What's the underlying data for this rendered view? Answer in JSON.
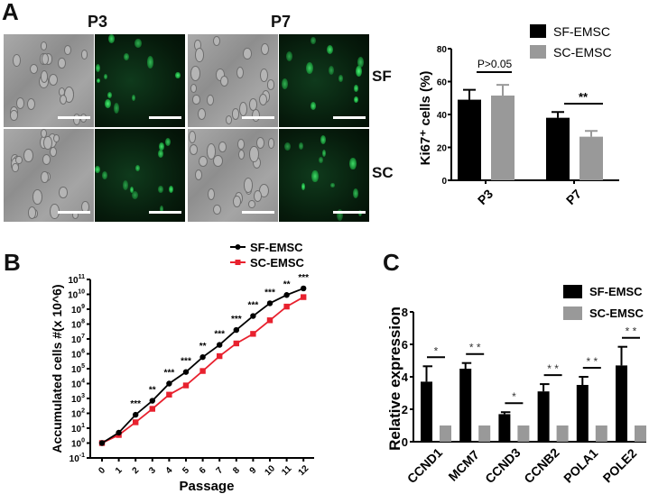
{
  "panels": {
    "A": {
      "letter": "A",
      "columns": [
        "P3",
        "P7"
      ],
      "rows": [
        "SF",
        "SC"
      ]
    },
    "B": {
      "letter": "B"
    },
    "C": {
      "letter": "C"
    }
  },
  "chart_data": [
    {
      "id": "A-bar",
      "type": "bar",
      "title": "",
      "xlabel": "",
      "ylabel": "Ki67+ cells (%)",
      "categories": [
        "P3",
        "P7"
      ],
      "series": [
        {
          "name": "SF-EMSC",
          "color": "#000000",
          "values": [
            49,
            38
          ],
          "errors": [
            6,
            3.5
          ]
        },
        {
          "name": "SC-EMSC",
          "color": "#999999",
          "values": [
            51.5,
            26.5
          ],
          "errors": [
            6.5,
            3.5
          ]
        }
      ],
      "ylim": [
        0,
        80
      ],
      "yticks": [
        0,
        20,
        40,
        60,
        80
      ],
      "annotations": [
        {
          "category": "P3",
          "text": "P>0.05"
        },
        {
          "category": "P7",
          "text": "**"
        }
      ],
      "legend_position": "top-right",
      "grid": false
    },
    {
      "id": "B-line",
      "type": "line",
      "title": "",
      "xlabel": "Passage",
      "ylabel": "Accumulated cells #(x 10^6)",
      "yscale": "log",
      "x": [
        0,
        1,
        2,
        3,
        4,
        5,
        6,
        7,
        8,
        9,
        10,
        11,
        12
      ],
      "series": [
        {
          "name": "SF-EMSC",
          "color": "#000000",
          "marker": "circle",
          "values": [
            1,
            5,
            80,
            700,
            10000,
            60000,
            600000,
            4000000,
            40000000,
            350000000,
            2500000000,
            9000000000,
            25000000000
          ]
        },
        {
          "name": "SC-EMSC",
          "color": "#e8212e",
          "marker": "square",
          "values": [
            1,
            3.5,
            25,
            200,
            1800,
            7500,
            70000,
            700000,
            5000000,
            22000000,
            180000000,
            1500000000,
            6500000000
          ]
        }
      ],
      "ylim": [
        0.1,
        100000000000
      ],
      "ytick_exponents": [
        -1,
        0,
        1,
        2,
        3,
        4,
        5,
        6,
        7,
        8,
        9,
        10,
        11
      ],
      "significance": [
        "",
        "",
        "***",
        "**",
        "***",
        "***",
        "**",
        "***",
        "***",
        "***",
        "***",
        "**",
        "***"
      ],
      "legend_position": "top-right",
      "grid": false
    },
    {
      "id": "C-bar",
      "type": "bar",
      "title": "",
      "xlabel": "",
      "ylabel": "Relative expression",
      "categories": [
        "CCND1",
        "MCM7",
        "CCND3",
        "CCNB2",
        "POLA1",
        "POLE2"
      ],
      "series": [
        {
          "name": "SF-EMSC",
          "color": "#000000",
          "values": [
            3.7,
            4.5,
            1.7,
            3.1,
            3.5,
            4.7
          ],
          "errors": [
            0.95,
            0.35,
            0.12,
            0.45,
            0.5,
            1.15
          ]
        },
        {
          "name": "SC-EMSC",
          "color": "#999999",
          "values": [
            1,
            1,
            1,
            1,
            1,
            1
          ],
          "errors": [
            0,
            0,
            0,
            0,
            0,
            0
          ]
        }
      ],
      "significance": [
        "*",
        "**",
        "*",
        "**",
        "**",
        "**"
      ],
      "ylim": [
        0,
        8
      ],
      "yticks": [
        0,
        2,
        4,
        6,
        8
      ],
      "legend_position": "top-right",
      "grid": false
    }
  ]
}
